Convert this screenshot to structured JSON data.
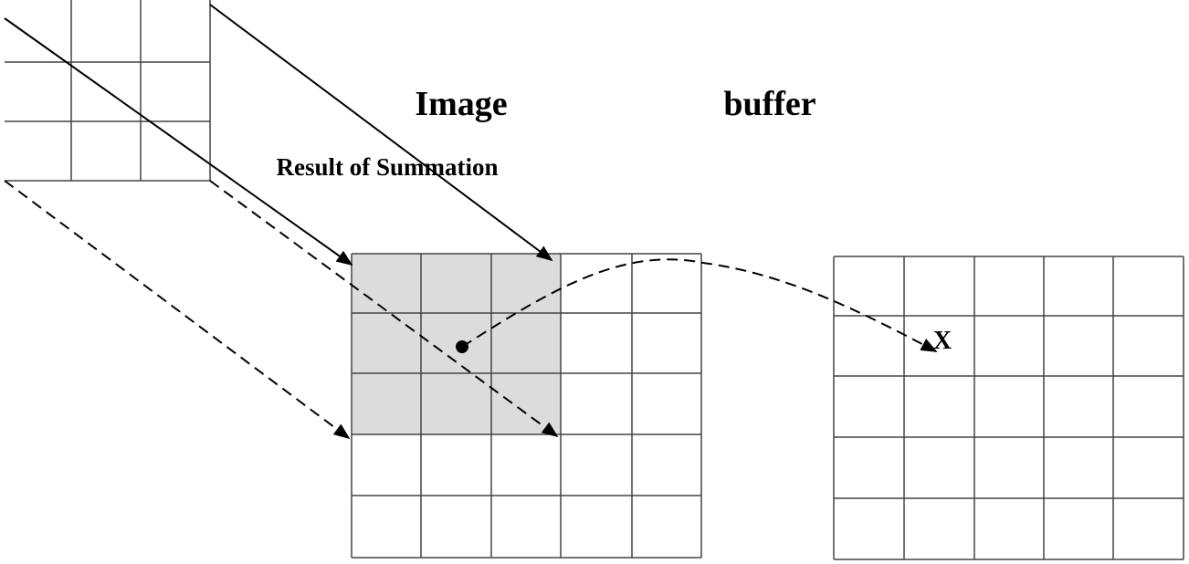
{
  "title_left": "Image",
  "title_right": "buffer",
  "caption": "Result of Summation",
  "target_label": "X"
}
